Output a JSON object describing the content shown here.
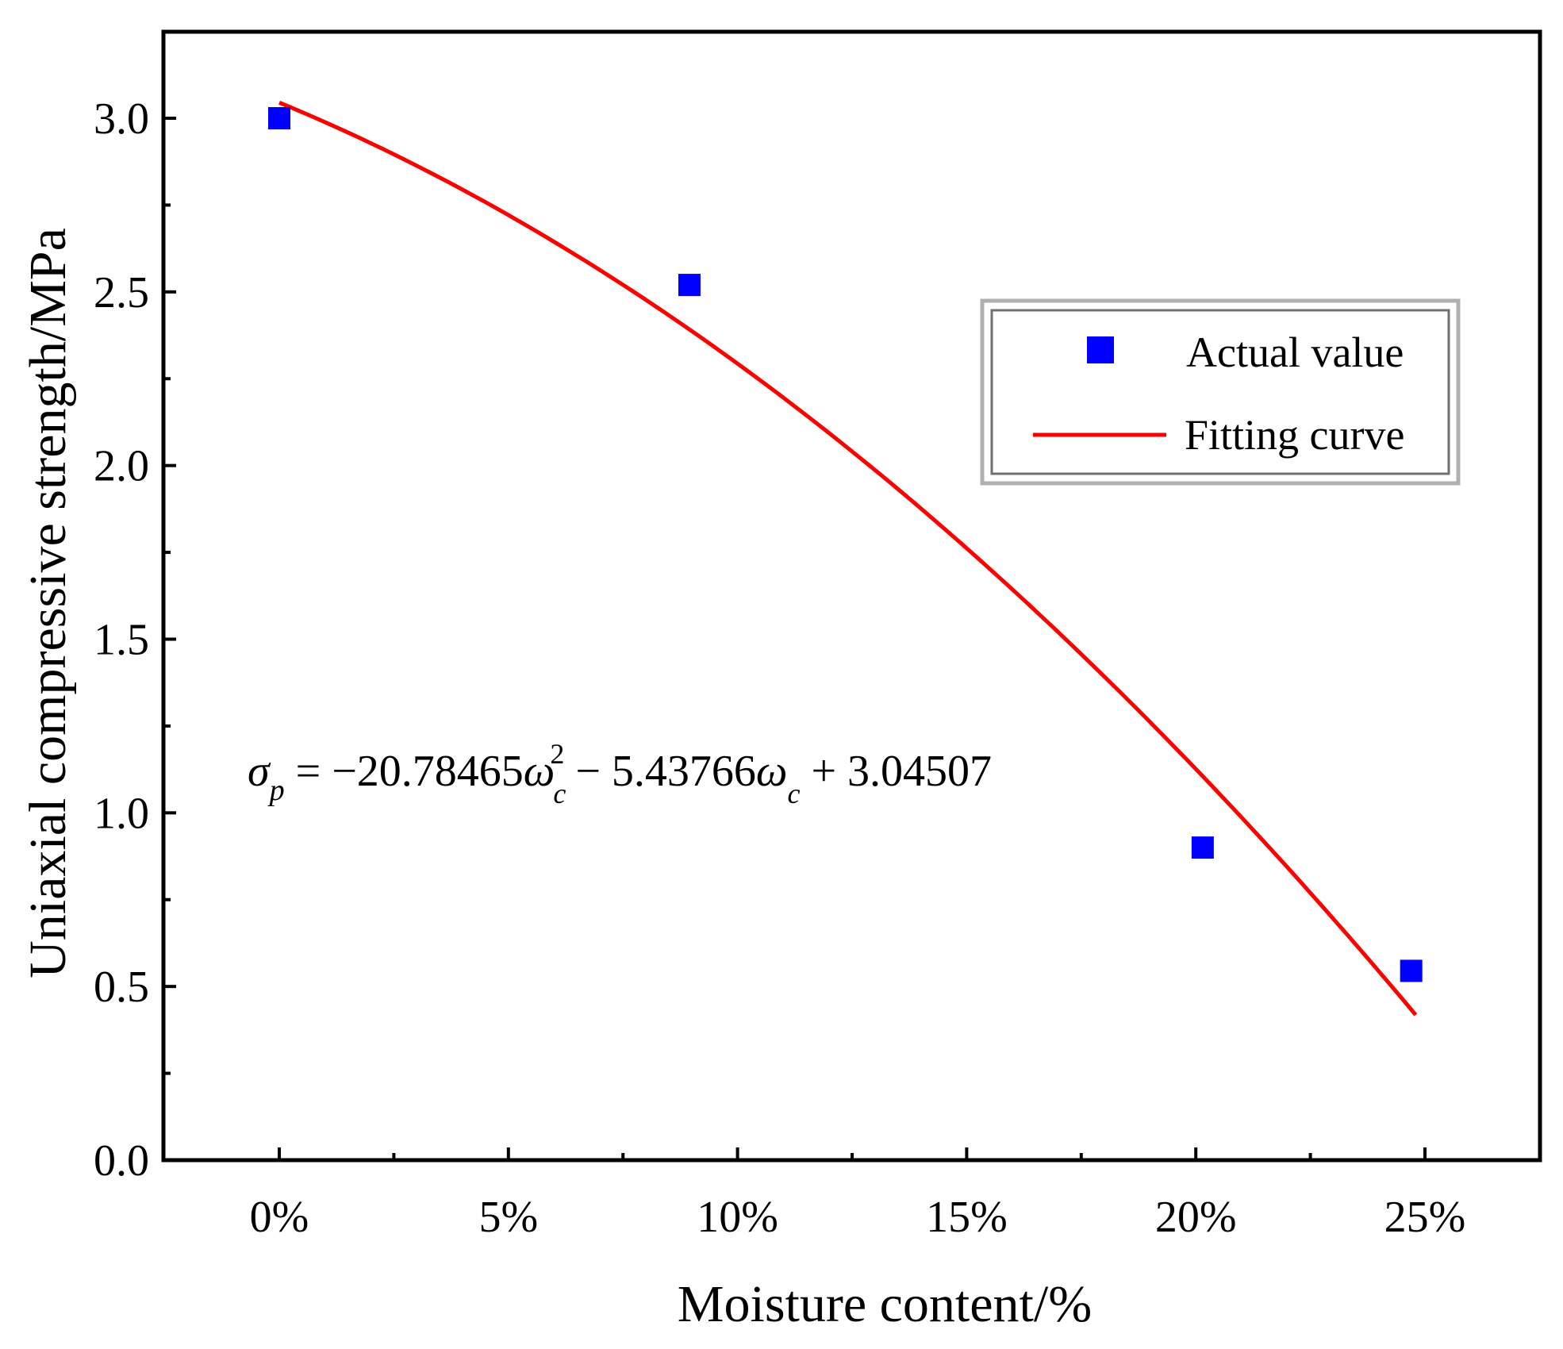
{
  "chart_data": {
    "type": "scatter",
    "title": "",
    "xlabel": "Moisture content/%",
    "ylabel": "Uniaxial compressive strength/MPa",
    "xlim": [
      -2.5,
      27.5
    ],
    "ylim": [
      0,
      3.25
    ],
    "x_ticks": [
      0,
      5,
      10,
      15,
      20,
      25
    ],
    "x_tick_labels": [
      "0%",
      "5%",
      "10%",
      "15%",
      "20%",
      "25%"
    ],
    "y_ticks": [
      0,
      0.5,
      1.0,
      1.5,
      2.0,
      2.5,
      3.0
    ],
    "y_tick_labels": [
      "0.0",
      "0.5",
      "1.0",
      "1.5",
      "2.0",
      "2.5",
      "3.0"
    ],
    "grid": false,
    "legend_position": "top-right",
    "series": [
      {
        "name": "Actual value",
        "kind": "scatter",
        "color": "#0000ff",
        "x": [
          0,
          8.95,
          20.15,
          24.7
        ],
        "y": [
          3.0,
          2.52,
          0.9,
          0.545
        ]
      },
      {
        "name": "Fitting curve",
        "kind": "line",
        "color": "#ff0000",
        "coefficients": {
          "a": -20.78465,
          "b": -5.43766,
          "c": 3.04507
        },
        "x_range": [
          0,
          24.8
        ]
      }
    ],
    "annotation": {
      "lhs": "σ",
      "lhs_sub": "p",
      "t1": " = −20.78465",
      "w": "ω",
      "sub_c": "c",
      "sup_2": "2",
      "t2": " − 5.43766",
      "t3": " + 3.04507"
    }
  }
}
